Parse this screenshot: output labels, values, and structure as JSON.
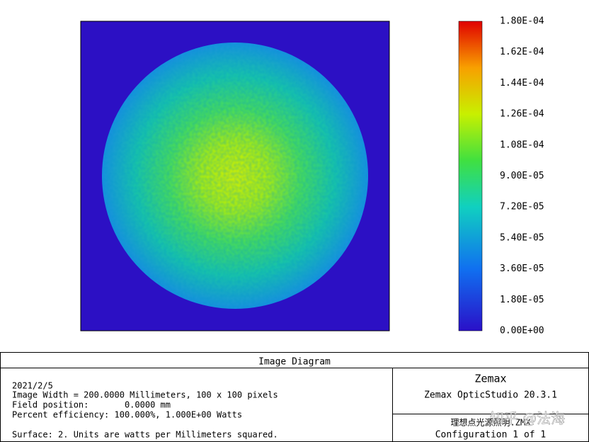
{
  "colorbar": {
    "labels": [
      "1.80E-04",
      "1.62E-04",
      "1.44E-04",
      "1.26E-04",
      "1.08E-04",
      "9.00E-05",
      "7.20E-05",
      "5.40E-05",
      "3.60E-05",
      "1.80E-05",
      "0.00E+00"
    ]
  },
  "footer": {
    "title": "Image Diagram",
    "info": [
      "2021/2/5",
      "Image Width = 200.0000 Millimeters, 100 x 100 pixels",
      "Field position:       0.0000 mm",
      "Percent efficiency: 100.000%, 1.000E+00 Watts"
    ],
    "surface": "Surface: 2. Units are watts per Millimeters squared.",
    "program": "Zemax",
    "version": "Zemax OpticStudio 20.3.1",
    "file": "理想点光源照明.ZMX",
    "configuration": "Configuration 1 of 1"
  },
  "watermark": "知乎 @法海"
}
